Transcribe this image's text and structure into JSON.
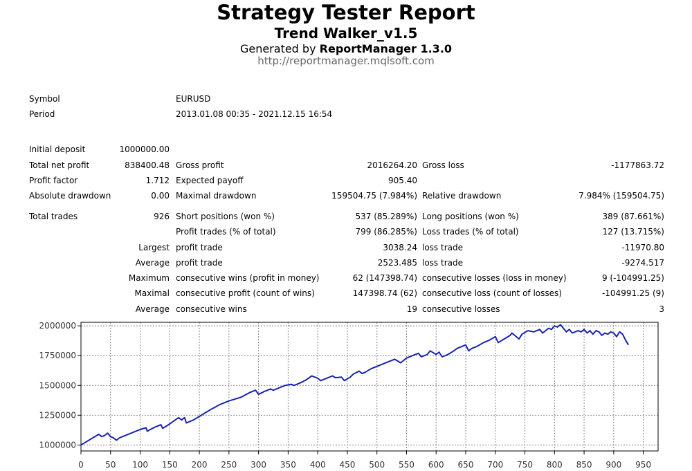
{
  "header": {
    "title": "Strategy Tester Report",
    "subtitle": "Trend Walker_v1.5",
    "generated_prefix": "Generated by ",
    "generated_tool": "ReportManager 1.3.0",
    "url": "http://reportmanager.mqlsoft.com"
  },
  "info": {
    "symbol_label": "Symbol",
    "symbol_value": "EURUSD",
    "period_label": "Period",
    "period_value": "2013.01.08 00:35 - 2021.12.15 16:54"
  },
  "stats": {
    "initial_deposit_label": "Initial deposit",
    "initial_deposit_value": "1000000.00",
    "total_net_profit_label": "Total net profit",
    "total_net_profit_value": "838400.48",
    "gross_profit_label": "Gross profit",
    "gross_profit_value": "2016264.20",
    "gross_loss_label": "Gross loss",
    "gross_loss_value": "-1177863.72",
    "profit_factor_label": "Profit factor",
    "profit_factor_value": "1.712",
    "expected_payoff_label": "Expected payoff",
    "expected_payoff_value": "905.40",
    "absolute_drawdown_label": "Absolute drawdown",
    "absolute_drawdown_value": "0.00",
    "maximal_drawdown_label": "Maximal drawdown",
    "maximal_drawdown_value": "159504.75 (7.984%)",
    "relative_drawdown_label": "Relative drawdown",
    "relative_drawdown_value": "7.984% (159504.75)",
    "total_trades_label": "Total trades",
    "total_trades_value": "926",
    "short_positions_label": "Short positions (won %)",
    "short_positions_value": "537 (85.289%)",
    "long_positions_label": "Long positions (won %)",
    "long_positions_value": "389 (87.661%)",
    "profit_trades_label": "Profit trades (% of total)",
    "profit_trades_value": "799 (86.285%)",
    "loss_trades_label": "Loss trades (% of total)",
    "loss_trades_value": "127 (13.715%)",
    "largest_label": "Largest",
    "largest_profit_label": "profit trade",
    "largest_profit_value": "3038.24",
    "largest_loss_label": "loss trade",
    "largest_loss_value": "-11970.80",
    "average_label": "Average",
    "average_profit_label": "profit trade",
    "average_profit_value": "2523.485",
    "average_loss_label": "loss trade",
    "average_loss_value": "-9274.517",
    "maximum_label": "Maximum",
    "max_cons_wins_label": "consecutive wins (profit in money)",
    "max_cons_wins_value": "62 (147398.74)",
    "max_cons_losses_label": "consecutive losses (loss in money)",
    "max_cons_losses_value": "9 (-104991.25)",
    "maximal_label": "Maximal",
    "maximal_cons_profit_label": "consecutive profit (count of wins)",
    "maximal_cons_profit_value": "147398.74 (62)",
    "maximal_cons_loss_label": "consecutive loss (count of losses)",
    "maximal_cons_loss_value": "-104991.25 (9)",
    "average2_label": "Average",
    "avg_cons_wins_label": "consecutive wins",
    "avg_cons_wins_value": "19",
    "avg_cons_losses_label": "consecutive losses",
    "avg_cons_losses_value": "3"
  },
  "chart_data": {
    "type": "line",
    "title": "",
    "xlabel": "",
    "ylabel": "",
    "xlim": [
      0,
      975
    ],
    "ylim": [
      950000,
      2030000
    ],
    "grid": true,
    "x_ticks": [
      0,
      50,
      100,
      150,
      200,
      250,
      300,
      350,
      400,
      450,
      500,
      550,
      600,
      650,
      700,
      750,
      800,
      850,
      900,
      950
    ],
    "y_ticks": [
      1000000,
      1250000,
      1500000,
      1750000,
      2000000
    ],
    "line_color": "#1a22b0",
    "series": [
      {
        "x": [
          0,
          10,
          20,
          30,
          35,
          40,
          45,
          50,
          55,
          60,
          65,
          70,
          80,
          90,
          100,
          110,
          112,
          115,
          125,
          135,
          138,
          145,
          155,
          165,
          170,
          175,
          178,
          190,
          200,
          210,
          220,
          235,
          250,
          260,
          270,
          285,
          295,
          300,
          310,
          320,
          325,
          335,
          345,
          355,
          360,
          370,
          380,
          390,
          400,
          405,
          415,
          425,
          430,
          440,
          445,
          455,
          460,
          470,
          475,
          480,
          490,
          500,
          510,
          520,
          530,
          540,
          545,
          550,
          560,
          570,
          575,
          585,
          590,
          600,
          605,
          610,
          620,
          630,
          635,
          650,
          655,
          660,
          670,
          680,
          690,
          700,
          705,
          715,
          725,
          728,
          740,
          745,
          755,
          765,
          775,
          780,
          790,
          795,
          800,
          805,
          810,
          815,
          820,
          825,
          830,
          840,
          845,
          850,
          855,
          860,
          865,
          870,
          875,
          880,
          885,
          890,
          895,
          900,
          905,
          910,
          915,
          920,
          925
        ],
        "y": [
          1000000,
          1030000,
          1060000,
          1090000,
          1070000,
          1080000,
          1100000,
          1070000,
          1060000,
          1040000,
          1060000,
          1070000,
          1090000,
          1110000,
          1130000,
          1145000,
          1115000,
          1125000,
          1150000,
          1170000,
          1140000,
          1160000,
          1195000,
          1230000,
          1210000,
          1230000,
          1185000,
          1210000,
          1240000,
          1270000,
          1300000,
          1340000,
          1370000,
          1385000,
          1400000,
          1440000,
          1460000,
          1425000,
          1450000,
          1470000,
          1460000,
          1480000,
          1500000,
          1510000,
          1500000,
          1520000,
          1545000,
          1580000,
          1560000,
          1540000,
          1560000,
          1580000,
          1565000,
          1570000,
          1540000,
          1570000,
          1595000,
          1620000,
          1600000,
          1610000,
          1640000,
          1660000,
          1680000,
          1700000,
          1720000,
          1690000,
          1710000,
          1730000,
          1750000,
          1770000,
          1740000,
          1760000,
          1790000,
          1760000,
          1780000,
          1740000,
          1760000,
          1790000,
          1810000,
          1840000,
          1790000,
          1810000,
          1830000,
          1860000,
          1880000,
          1910000,
          1860000,
          1890000,
          1920000,
          1940000,
          1890000,
          1930000,
          1960000,
          1950000,
          1970000,
          1940000,
          1980000,
          1970000,
          2000000,
          1990000,
          2010000,
          1980000,
          1950000,
          1970000,
          1940000,
          1960000,
          1950000,
          1970000,
          1940000,
          1960000,
          1930000,
          1960000,
          1950000,
          1920000,
          1940000,
          1930000,
          1950000,
          1940000,
          1910000,
          1950000,
          1930000,
          1880000,
          1840000
        ]
      }
    ]
  }
}
